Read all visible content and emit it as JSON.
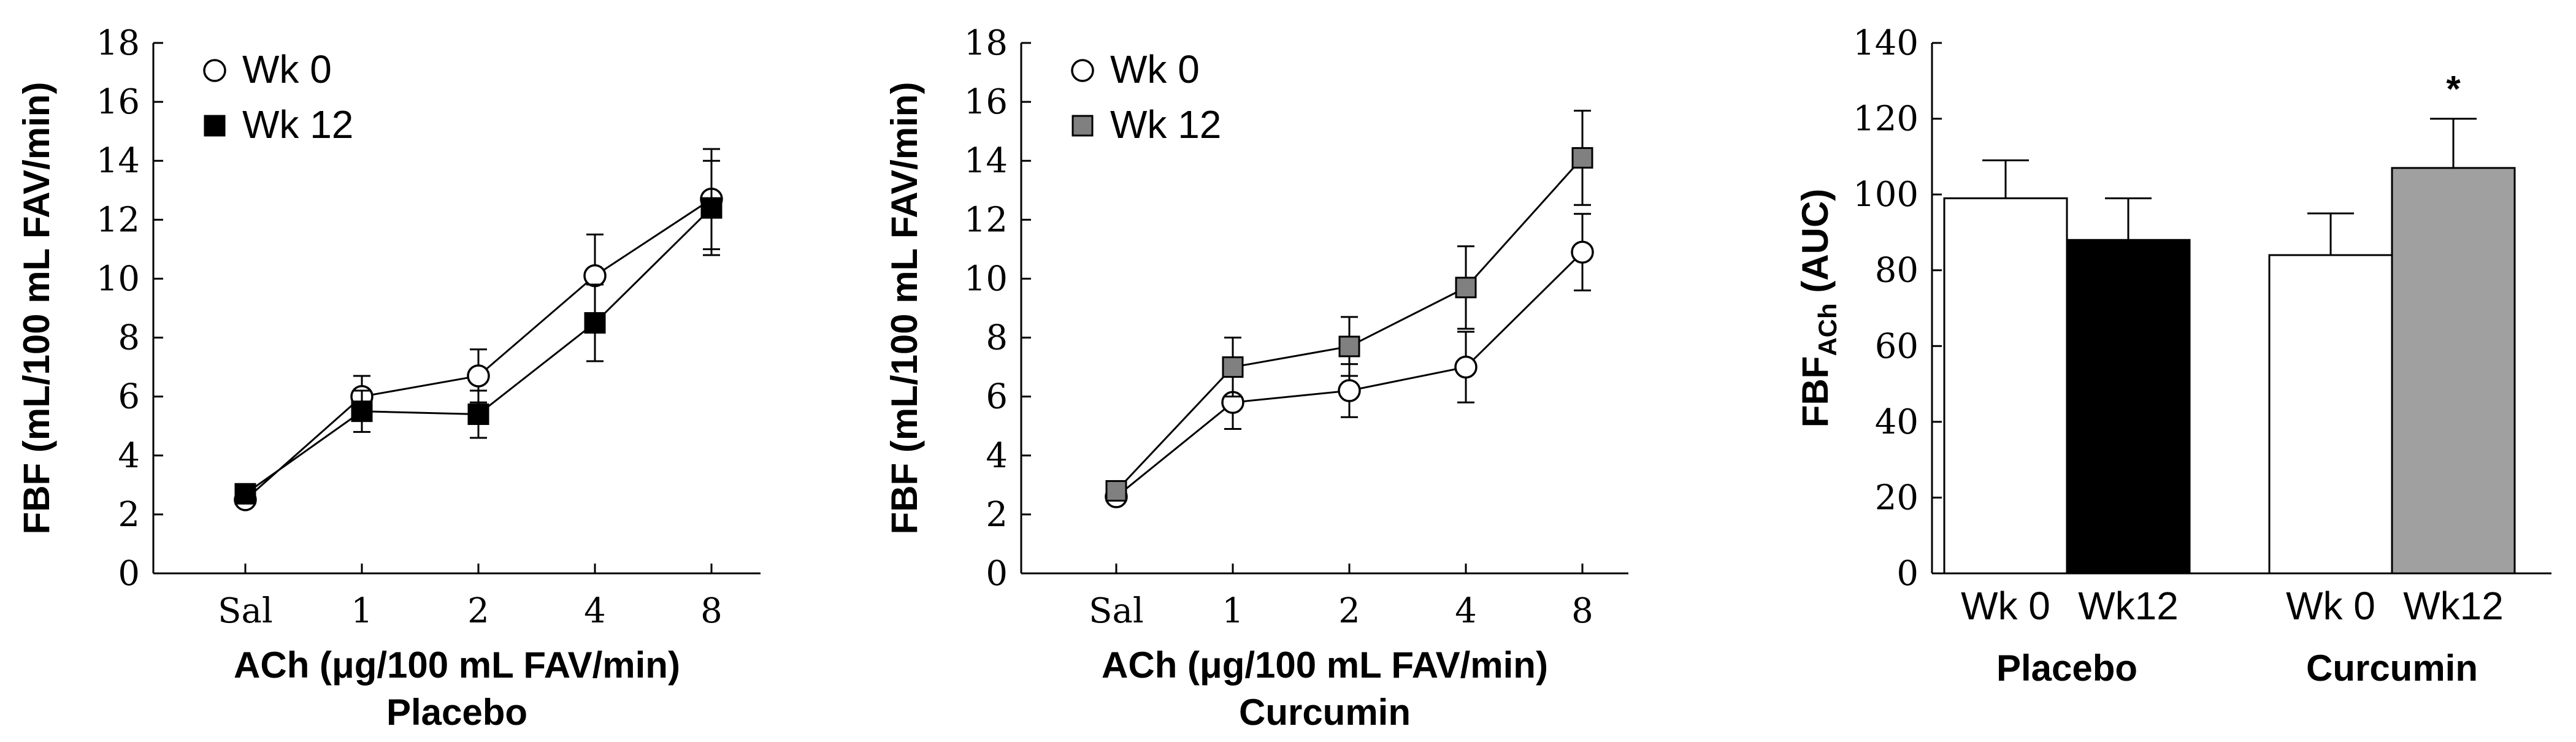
{
  "chart_data": [
    {
      "type": "line",
      "subtitle": "Placebo",
      "xlabel": "ACh (μg/100 mL FAV/min)",
      "ylabel": "FBF (mL/100 mL FAV/min)",
      "ylim": [
        0,
        18
      ],
      "yticks": [
        0,
        2,
        4,
        6,
        8,
        10,
        12,
        14,
        16,
        18
      ],
      "categories": [
        "Sal",
        "1",
        "2",
        "4",
        "8"
      ],
      "legend_position": "top-left",
      "series": [
        {
          "name": "Wk 0",
          "marker": "circle-open",
          "color": "#ffffff",
          "values": [
            2.5,
            6.0,
            6.7,
            10.1,
            12.7
          ],
          "errors": [
            0.2,
            0.7,
            0.9,
            1.4,
            1.7
          ]
        },
        {
          "name": "Wk 12",
          "marker": "square",
          "color": "#000000",
          "values": [
            2.7,
            5.5,
            5.4,
            8.5,
            12.4
          ],
          "errors": [
            0.2,
            0.7,
            0.8,
            1.3,
            1.6
          ]
        }
      ]
    },
    {
      "type": "line",
      "subtitle": "Curcumin",
      "xlabel": "ACh (μg/100 mL FAV/min)",
      "ylabel": "FBF (mL/100 mL FAV/min)",
      "ylim": [
        0,
        18
      ],
      "yticks": [
        0,
        2,
        4,
        6,
        8,
        10,
        12,
        14,
        16,
        18
      ],
      "categories": [
        "Sal",
        "1",
        "2",
        "4",
        "8"
      ],
      "legend_position": "top-left",
      "series": [
        {
          "name": "Wk 0",
          "marker": "circle-open",
          "color": "#ffffff",
          "values": [
            2.6,
            5.8,
            6.2,
            7.0,
            10.9
          ],
          "errors": [
            0.2,
            0.9,
            0.9,
            1.2,
            1.3
          ]
        },
        {
          "name": "Wk 12",
          "marker": "square",
          "color": "#808080",
          "values": [
            2.8,
            7.0,
            7.7,
            9.7,
            14.1
          ],
          "errors": [
            0.2,
            1.0,
            1.0,
            1.4,
            1.6
          ]
        }
      ]
    },
    {
      "type": "bar",
      "ylabel_main": "FBF",
      "ylabel_sub": "ACh",
      "ylabel_suffix": " (AUC)",
      "ylim": [
        0,
        140
      ],
      "yticks": [
        0,
        20,
        40,
        60,
        80,
        100,
        120,
        140
      ],
      "groups": [
        {
          "label": "Placebo",
          "bars": [
            {
              "label": "Wk 0",
              "value": 99,
              "error": 10,
              "color": "#ffffff",
              "annotation": ""
            },
            {
              "label": "Wk12",
              "value": 88,
              "error": 11,
              "color": "#000000",
              "annotation": ""
            }
          ]
        },
        {
          "label": "Curcumin",
          "bars": [
            {
              "label": "Wk 0",
              "value": 84,
              "error": 11,
              "color": "#ffffff",
              "annotation": ""
            },
            {
              "label": "Wk12",
              "value": 107,
              "error": 13,
              "color": "#a0a0a0",
              "annotation": "*"
            }
          ]
        }
      ]
    }
  ]
}
